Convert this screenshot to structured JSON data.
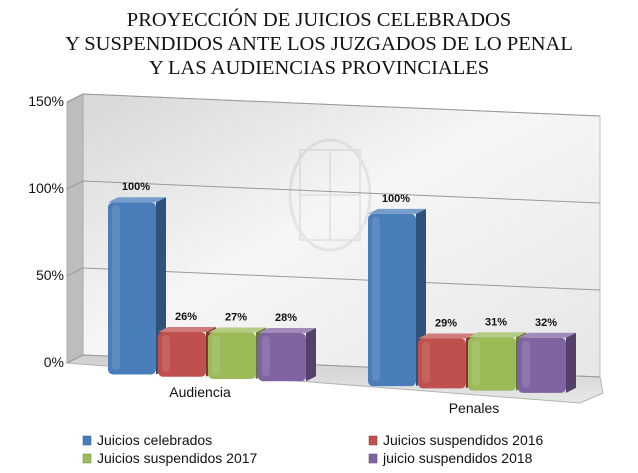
{
  "chart_data": {
    "type": "bar",
    "title_lines": [
      "PROYECCIÓN DE JUICIOS CELEBRADOS",
      "Y SUSPENDIDOS ANTE LOS JUZGADOS DE LO PENAL",
      "Y LAS AUDIENCIAS PROVINCIALES"
    ],
    "categories": [
      "Audiencia",
      "Penales"
    ],
    "series": [
      {
        "name": "Juicios celebrados",
        "values": [
          100,
          100
        ],
        "labels": [
          "100%",
          "100%"
        ],
        "color": "#4a7ebb"
      },
      {
        "name": "Juicios suspendidos 2016",
        "values": [
          26,
          29
        ],
        "labels": [
          "26%",
          "29%"
        ],
        "color": "#c0504d"
      },
      {
        "name": "Juicios suspendidos 2017",
        "values": [
          27,
          31
        ],
        "labels": [
          "27%",
          "31%"
        ],
        "color": "#9bbb59"
      },
      {
        "name": "juicio suspendidos 2018",
        "values": [
          28,
          32
        ],
        "labels": [
          "28%",
          "32%"
        ],
        "color": "#8064a2"
      }
    ],
    "y_ticks": [
      "0%",
      "50%",
      "100%",
      "150%"
    ],
    "y_tick_values": [
      0,
      50,
      100,
      150
    ],
    "ylim": [
      0,
      150
    ],
    "grid": true,
    "legend_position": "bottom",
    "style": "3d-column"
  }
}
